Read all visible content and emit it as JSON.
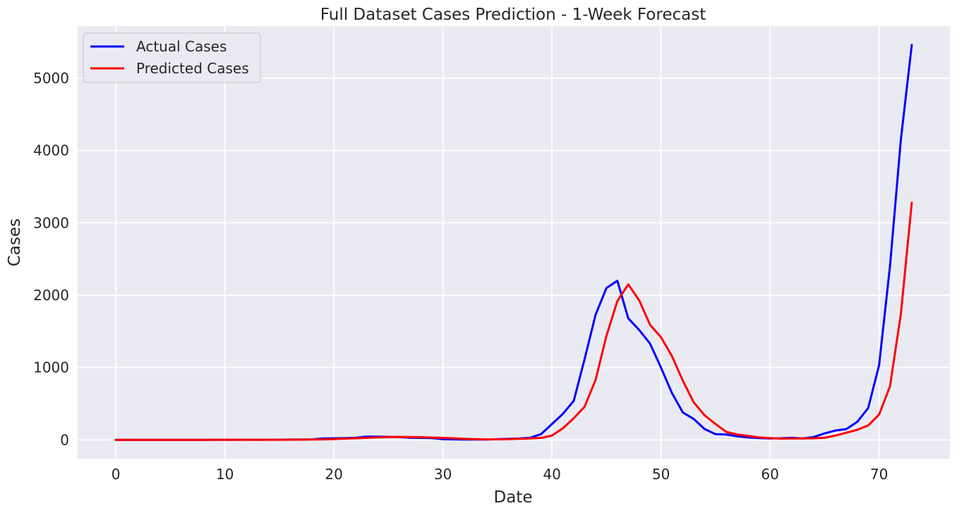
{
  "chart_data": {
    "type": "line",
    "title": "Full Dataset Cases Prediction - 1-Week Forecast",
    "xlabel": "Date",
    "ylabel": "Cases",
    "xlim": [
      -3.5,
      76.5
    ],
    "ylim": [
      -260,
      5720
    ],
    "xticks": [
      0,
      10,
      20,
      30,
      40,
      50,
      60,
      70
    ],
    "yticks": [
      0,
      1000,
      2000,
      3000,
      4000,
      5000
    ],
    "grid": true,
    "legend_position": "top-left",
    "series": [
      {
        "name": "Actual Cases",
        "color": "#0000ff",
        "x": [
          0,
          1,
          2,
          3,
          4,
          5,
          6,
          7,
          8,
          9,
          10,
          11,
          12,
          13,
          14,
          15,
          16,
          17,
          18,
          19,
          20,
          21,
          22,
          23,
          24,
          25,
          26,
          27,
          28,
          29,
          30,
          31,
          32,
          33,
          34,
          35,
          36,
          37,
          38,
          39,
          40,
          41,
          42,
          43,
          44,
          45,
          46,
          47,
          48,
          49,
          50,
          51,
          52,
          53,
          54,
          55,
          56,
          57,
          58,
          59,
          60,
          61,
          62,
          63,
          64,
          65,
          66,
          67,
          68,
          69,
          70,
          71,
          72,
          73
        ],
        "values": [
          0,
          0,
          0,
          0,
          0,
          0,
          0,
          0,
          0,
          2,
          2,
          2,
          3,
          2,
          3,
          3,
          5,
          5,
          8,
          20,
          22,
          25,
          30,
          45,
          45,
          42,
          40,
          30,
          28,
          25,
          10,
          8,
          5,
          5,
          5,
          10,
          15,
          20,
          30,
          80,
          220,
          360,
          540,
          1120,
          1730,
          2100,
          2200,
          1680,
          1520,
          1330,
          1000,
          650,
          380,
          290,
          150,
          80,
          75,
          50,
          35,
          25,
          20,
          22,
          30,
          20,
          40,
          90,
          130,
          150,
          250,
          440,
          1030,
          2400,
          4150,
          5460
        ]
      },
      {
        "name": "Predicted Cases",
        "color": "#ff0000",
        "x": [
          0,
          1,
          2,
          3,
          4,
          5,
          6,
          7,
          8,
          9,
          10,
          11,
          12,
          13,
          14,
          15,
          16,
          17,
          18,
          19,
          20,
          21,
          22,
          23,
          24,
          25,
          26,
          27,
          28,
          29,
          30,
          31,
          32,
          33,
          34,
          35,
          36,
          37,
          38,
          39,
          40,
          41,
          42,
          43,
          44,
          45,
          46,
          47,
          48,
          49,
          50,
          51,
          52,
          53,
          54,
          55,
          56,
          57,
          58,
          59,
          60,
          61,
          62,
          63,
          64,
          65,
          66,
          67,
          68,
          69,
          70,
          71,
          72,
          73
        ],
        "values": [
          0,
          0,
          0,
          0,
          0,
          0,
          0,
          0,
          0,
          2,
          2,
          2,
          2,
          2,
          2,
          2,
          3,
          4,
          5,
          8,
          12,
          18,
          22,
          28,
          35,
          40,
          42,
          40,
          38,
          32,
          28,
          22,
          15,
          10,
          8,
          8,
          10,
          15,
          20,
          28,
          60,
          160,
          300,
          460,
          830,
          1440,
          1920,
          2150,
          1930,
          1590,
          1420,
          1160,
          820,
          520,
          340,
          220,
          110,
          75,
          55,
          35,
          25,
          18,
          20,
          20,
          22,
          30,
          60,
          100,
          140,
          200,
          350,
          740,
          1740,
          3280
        ]
      }
    ]
  }
}
